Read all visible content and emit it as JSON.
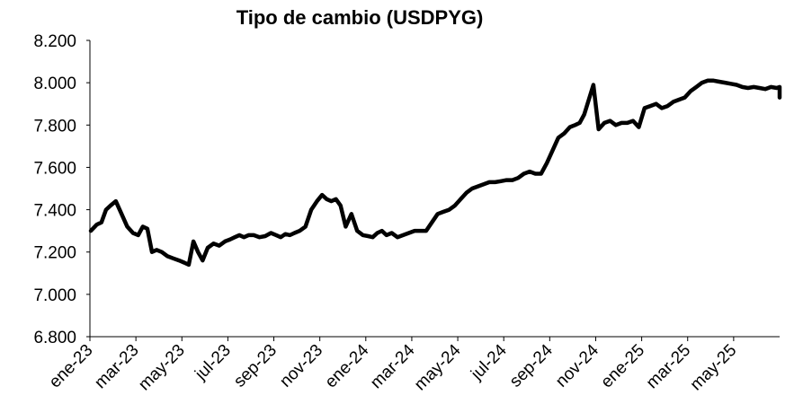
{
  "chart_data": {
    "type": "line",
    "title": "Tipo de cambio (USDPYG)",
    "xlabel": "",
    "ylabel": "",
    "ylim": [
      6800,
      8200
    ],
    "yticks": [
      6800,
      7000,
      7200,
      7400,
      7600,
      7800,
      8000,
      8200
    ],
    "ytick_labels": [
      "6.800",
      "7.000",
      "7.200",
      "7.400",
      "7.600",
      "7.800",
      "8.000",
      "8.200"
    ],
    "xtick_labels": [
      "ene-23",
      "mar-23",
      "may-23",
      "jul-23",
      "sep-23",
      "nov-23",
      "ene-24",
      "mar-24",
      "may-24",
      "jul-24",
      "sep-24",
      "nov-24",
      "ene-25",
      "mar-25",
      "may-25"
    ],
    "x_range": [
      "2023-01",
      "2025-07"
    ],
    "grid": false,
    "legend": "none",
    "color": "#000000",
    "series": [
      {
        "x": [
          "2023-01",
          "2023-01",
          "2023-01",
          "2023-01",
          "2023-01",
          "2023-02",
          "2023-02",
          "2023-02",
          "2023-02",
          "2023-03",
          "2023-03",
          "2023-03",
          "2023-03",
          "2023-03",
          "2023-04",
          "2023-04",
          "2023-04",
          "2023-04",
          "2023-05",
          "2023-05",
          "2023-05",
          "2023-05",
          "2023-05",
          "2023-06",
          "2023-06",
          "2023-06",
          "2023-06",
          "2023-07",
          "2023-07",
          "2023-07",
          "2023-07",
          "2023-07",
          "2023-08",
          "2023-08",
          "2023-08",
          "2023-08",
          "2023-09",
          "2023-09",
          "2023-09",
          "2023-09",
          "2023-09",
          "2023-10",
          "2023-10",
          "2023-10",
          "2023-10",
          "2023-11",
          "2023-11",
          "2023-11",
          "2023-11",
          "2023-11",
          "2023-12",
          "2023-12",
          "2023-12",
          "2023-12",
          "2024-01",
          "2024-01",
          "2024-01",
          "2024-01",
          "2024-01",
          "2024-02",
          "2024-02",
          "2024-02",
          "2024-02",
          "2024-03",
          "2024-03",
          "2024-03",
          "2024-03",
          "2024-04",
          "2024-04",
          "2024-04",
          "2024-04",
          "2024-05",
          "2024-05",
          "2024-05",
          "2024-05",
          "2024-06",
          "2024-06",
          "2024-06",
          "2024-06",
          "2024-07",
          "2024-07",
          "2024-07",
          "2024-07",
          "2024-08",
          "2024-08",
          "2024-08",
          "2024-08",
          "2024-09",
          "2024-09",
          "2024-09",
          "2024-09",
          "2024-10",
          "2024-10",
          "2024-10",
          "2024-10",
          "2024-10",
          "2024-11",
          "2024-11",
          "2024-11",
          "2024-11",
          "2024-12",
          "2024-12",
          "2024-12",
          "2024-12",
          "2025-01",
          "2025-01",
          "2025-01",
          "2025-01",
          "2025-02",
          "2025-02",
          "2025-02",
          "2025-02",
          "2025-03",
          "2025-03",
          "2025-03",
          "2025-03",
          "2025-04",
          "2025-04",
          "2025-04",
          "2025-04",
          "2025-05",
          "2025-05",
          "2025-05",
          "2025-05",
          "2025-06",
          "2025-06",
          "2025-06",
          "2025-06",
          "2025-07",
          "2025-07"
        ],
        "values": [
          7300,
          7330,
          7340,
          7400,
          7420,
          7440,
          7380,
          7320,
          7290,
          7280,
          7320,
          7310,
          7200,
          7210,
          7200,
          7180,
          7170,
          7160,
          7150,
          7140,
          7250,
          7200,
          7160,
          7220,
          7240,
          7230,
          7250,
          7260,
          7270,
          7280,
          7270,
          7280,
          7280,
          7270,
          7275,
          7290,
          7280,
          7270,
          7285,
          7280,
          7290,
          7300,
          7320,
          7400,
          7440,
          7470,
          7450,
          7440,
          7450,
          7420,
          7320,
          7380,
          7300,
          7280,
          7275,
          7270,
          7290,
          7300,
          7280,
          7290,
          7270,
          7280,
          7290,
          7300,
          7300,
          7300,
          7340,
          7380,
          7390,
          7400,
          7420,
          7450,
          7480,
          7500,
          7510,
          7520,
          7530,
          7530,
          7535,
          7540,
          7540,
          7550,
          7570,
          7580,
          7570,
          7570,
          7620,
          7680,
          7740,
          7760,
          7790,
          7800,
          7810,
          7850,
          7920,
          7990,
          7780,
          7810,
          7820,
          7800,
          7810,
          7810,
          7820,
          7790,
          7880,
          7890,
          7900,
          7880,
          7890,
          7910,
          7920,
          7930,
          7960,
          7980,
          8000,
          8010,
          8010,
          8005,
          8000,
          7995,
          7990,
          7980,
          7975,
          7980,
          7975,
          7970,
          7980,
          7975,
          7980,
          7930
        ]
      }
    ]
  }
}
